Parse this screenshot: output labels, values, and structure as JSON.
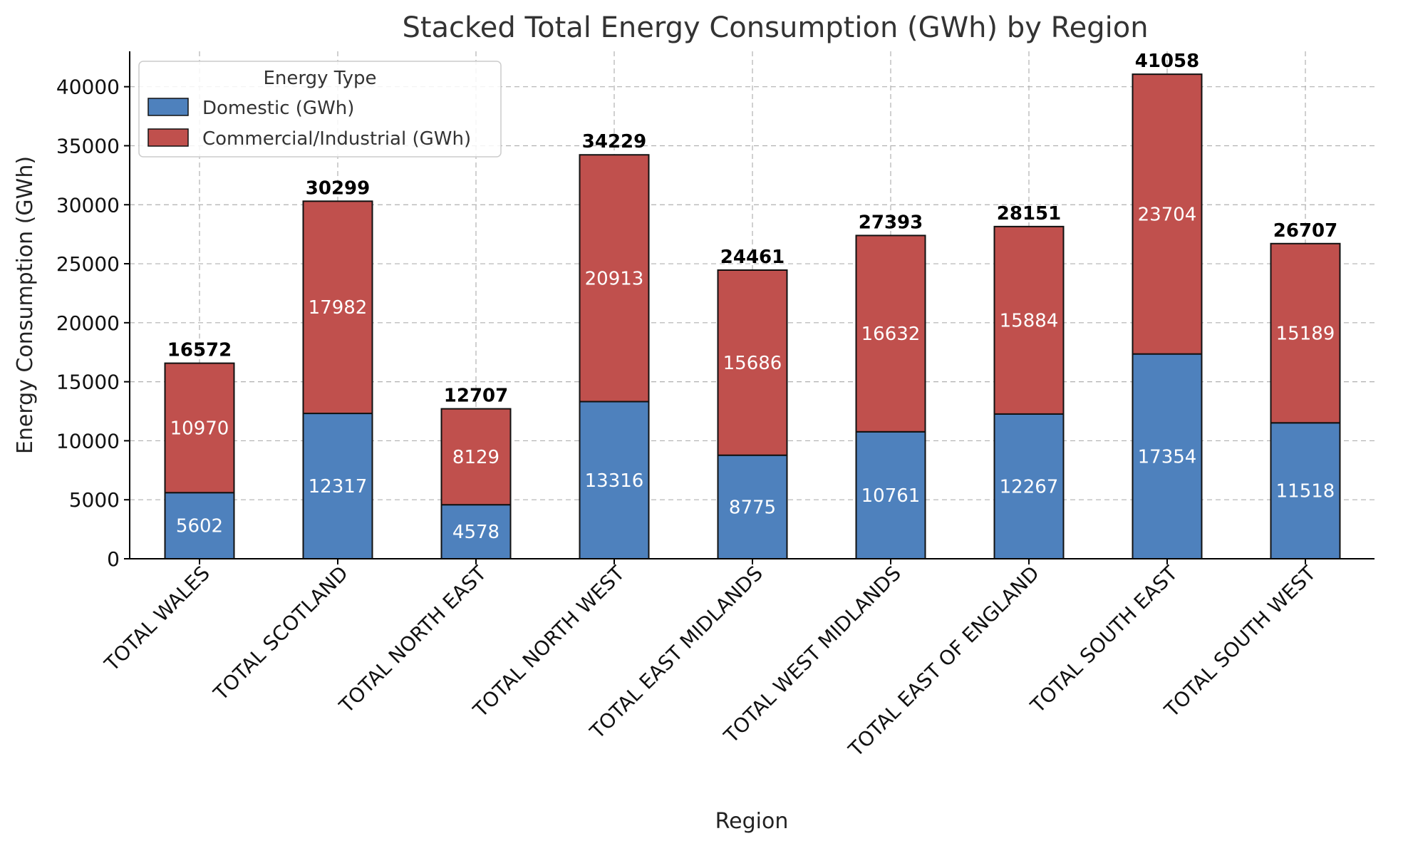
{
  "chart_data": {
    "type": "bar",
    "stacked": true,
    "title": "Stacked Total Energy Consumption (GWh) by Region",
    "xlabel": "Region",
    "ylabel": "Energy Consumption (GWh)",
    "ylim": [
      0,
      43000
    ],
    "yticks": [
      0,
      5000,
      10000,
      15000,
      20000,
      25000,
      30000,
      35000,
      40000
    ],
    "grid": true,
    "legend": {
      "title": "Energy Type",
      "position": "top-left"
    },
    "categories": [
      "TOTAL WALES",
      "TOTAL SCOTLAND",
      "TOTAL NORTH EAST",
      "TOTAL NORTH WEST",
      "TOTAL EAST MIDLANDS",
      "TOTAL WEST MIDLANDS",
      "TOTAL EAST OF ENGLAND",
      "TOTAL SOUTH EAST",
      "TOTAL SOUTH WEST"
    ],
    "series": [
      {
        "name": "Domestic (GWh)",
        "color": "#4e81bd",
        "values": [
          5602,
          12317,
          4578,
          13316,
          8775,
          10761,
          12267,
          17354,
          11518
        ]
      },
      {
        "name": "Commercial/Industrial (GWh)",
        "color": "#c0504d",
        "values": [
          10970,
          17982,
          8129,
          20913,
          15686,
          16632,
          15884,
          23704,
          15189
        ]
      }
    ],
    "totals": [
      16572,
      30299,
      12707,
      34229,
      24461,
      27393,
      28151,
      41058,
      26707
    ]
  }
}
